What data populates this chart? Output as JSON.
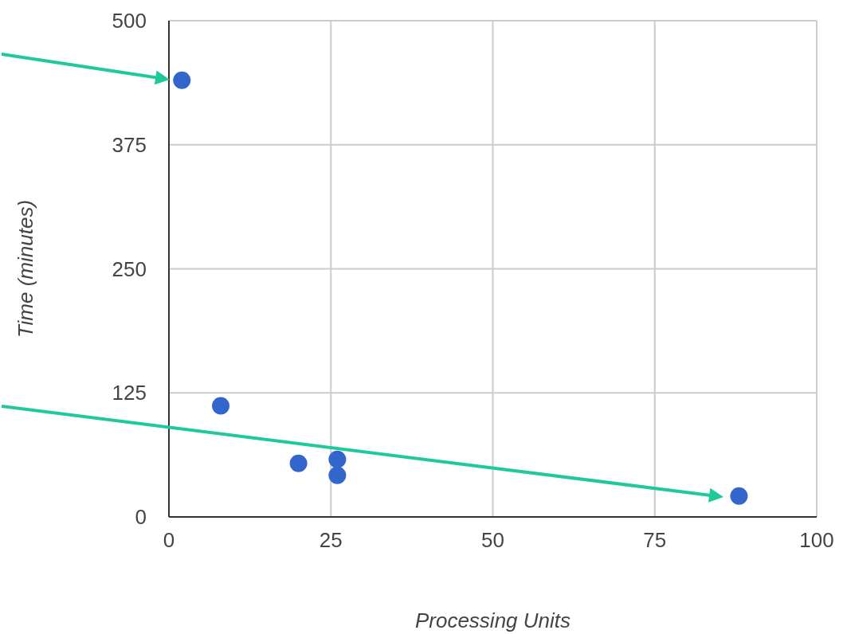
{
  "chart_data": {
    "type": "scatter",
    "xlabel": "Processing Units",
    "ylabel": "Time (minutes)",
    "x": [
      2,
      8,
      20,
      26,
      26,
      88
    ],
    "values": [
      440,
      112,
      54,
      58,
      42,
      21
    ],
    "color": "#3366cc",
    "marker": "circle",
    "grid": true,
    "xlim": [
      0,
      100
    ],
    "xticks": [
      0,
      25,
      50,
      75,
      100
    ],
    "ylim": [
      0,
      500
    ],
    "yticks": [
      0,
      125,
      250,
      375,
      500
    ]
  }
}
